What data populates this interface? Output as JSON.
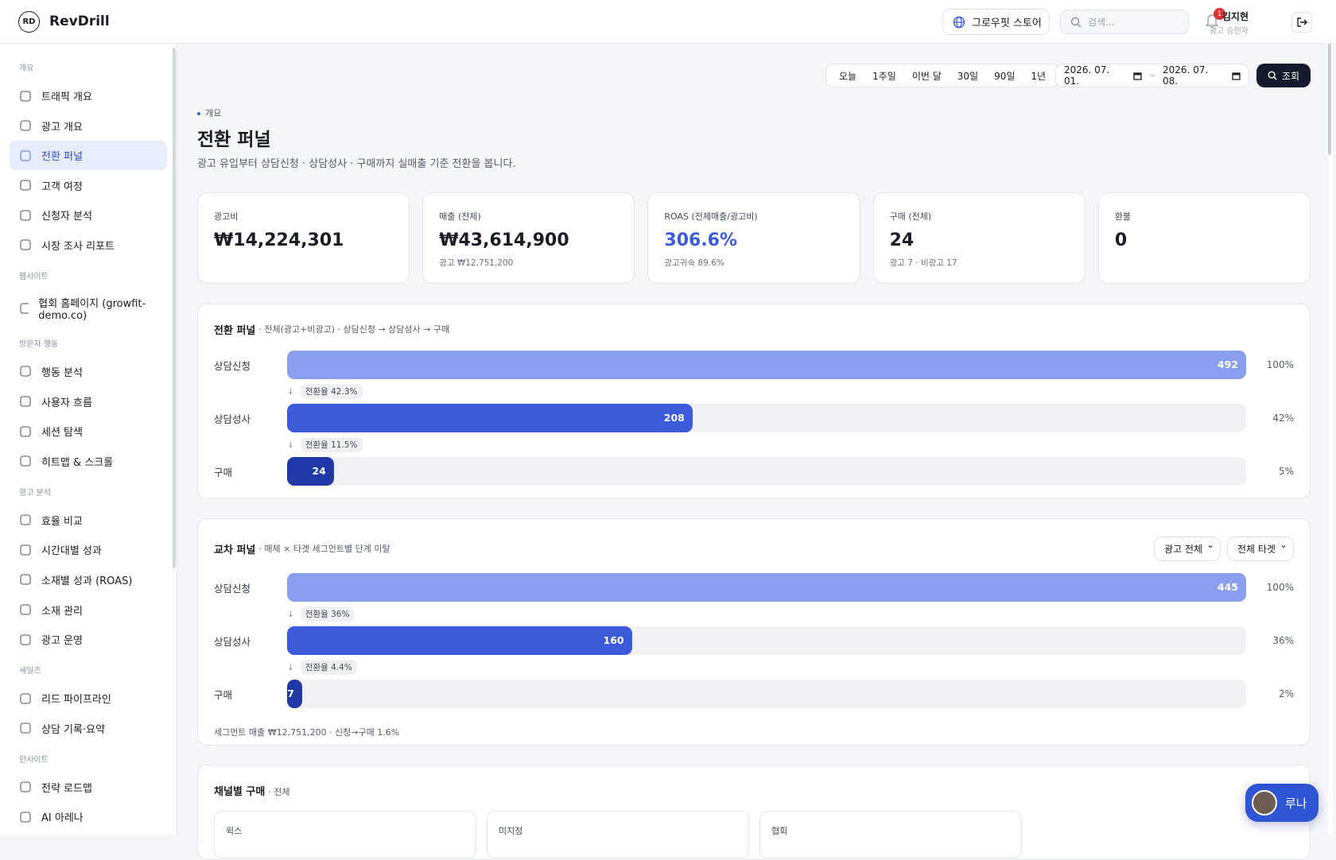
{
  "brand": {
    "logo": "RD",
    "name": "RevDrill"
  },
  "topbar": {
    "site": "그로우핏 스토어",
    "search_placeholder": "검색...",
    "notification_count": "1",
    "user_name": "김지현",
    "user_role": "광고 승인자"
  },
  "sidebar": {
    "sections": [
      {
        "title": "개요",
        "items": [
          "트래픽 개요",
          "광고 개요",
          "전환 퍼널",
          "고객 여정",
          "신청자 분석",
          "시장 조사 리포트"
        ]
      },
      {
        "title": "웹사이트",
        "items": [
          "협회 홈페이지 (growfit-demo.co)"
        ]
      },
      {
        "title": "방문자 행동",
        "items": [
          "행동 분석",
          "사용자 흐름",
          "세션 탐색",
          "히트맵 & 스크롤"
        ]
      },
      {
        "title": "광고 분석",
        "items": [
          "효율 비교",
          "시간대별 성과",
          "소재별 성과 (ROAS)",
          "소재 관리",
          "광고 운영"
        ]
      },
      {
        "title": "세일즈",
        "items": [
          "리드 파이프라인",
          "상담 기록·요약"
        ]
      },
      {
        "title": "인사이트",
        "items": [
          "전략 로드맵",
          "AI 아레나"
        ]
      }
    ]
  },
  "date_filter": {
    "ranges": [
      "오늘",
      "1주일",
      "이번 달",
      "30일",
      "90일",
      "1년"
    ],
    "from": "2026. 07. 01.",
    "separator": "~",
    "to": "2026. 07. 08.",
    "button": "조회"
  },
  "header": {
    "breadcrumb": "개요",
    "title": "전환 퍼널",
    "subtitle": "광고 유입부터 상담신청 · 상담성사 · 구매까지 실매출 기준 전환을 봅니다."
  },
  "kpis": [
    {
      "label": "광고비",
      "value": "₩14,224,301"
    },
    {
      "label": "매출 (전체)",
      "value": "₩43,614,900",
      "sub": "광고 ₩12,751,200"
    },
    {
      "label": "ROAS (전체매출/광고비)",
      "value": "306.6%",
      "sub": "광고귀속 89.6%"
    },
    {
      "label": "구매 (전체)",
      "value": "24",
      "sub": "광고 7 · 비광고 17"
    },
    {
      "label": "환불",
      "value": "0"
    }
  ],
  "funnel": {
    "title": "전환 퍼널",
    "note": "· 전체(광고+비광고) · 상담신청 → 상담성사 → 구매",
    "stages": [
      {
        "name": "상담신청",
        "value": 492,
        "share": "100%",
        "color": "#8a9ff0"
      },
      {
        "name": "상담성사",
        "value": 208,
        "share": "42%",
        "rate": "전환율 42.3%",
        "color": "#3b5bdb"
      },
      {
        "name": "구매",
        "value": 24,
        "share": "5%",
        "rate": "전환율 11.5%",
        "color": "#1f3aa6"
      }
    ]
  },
  "cross_funnel": {
    "title": "교차 퍼널",
    "note": "· 매체 × 타겟 세그먼트별 단계 이탈",
    "filters": [
      "광고 전체",
      "전체 타겟"
    ],
    "stages": [
      {
        "name": "상담신청",
        "value": 445,
        "share": "100%",
        "color": "#8a9ff0"
      },
      {
        "name": "상담성사",
        "value": 160,
        "share": "36%",
        "rate": "전환율 36%",
        "color": "#3b5bdb"
      },
      {
        "name": "구매",
        "value": 7,
        "share": "2%",
        "rate": "전환율 4.4%",
        "color": "#1f3aa6"
      }
    ],
    "footer": "세그먼트 매출 ₩12,751,200 · 신청→구매 1.6%"
  },
  "channels": {
    "title": "채널별 구매",
    "note": "· 전체",
    "cards": [
      "윅스",
      "미지정",
      "협회"
    ]
  },
  "chat": {
    "label": "루나"
  }
}
